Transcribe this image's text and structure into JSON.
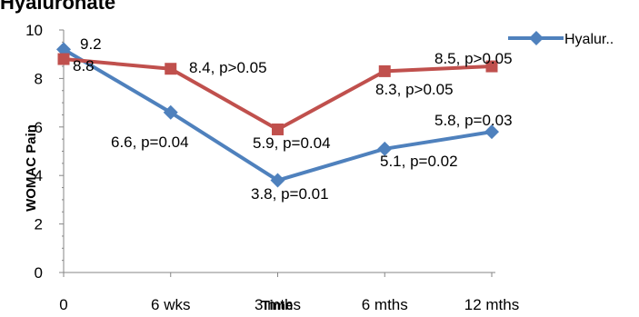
{
  "chart_data": {
    "type": "line",
    "title": "Hyaluronate",
    "xlabel": "Time",
    "ylabel": "WOMAC Pain",
    "categories": [
      "0",
      "6 wks",
      "3 mths",
      "6 mths",
      "12 mths"
    ],
    "ylim": [
      0,
      10
    ],
    "yticks": [
      "0",
      "2",
      "4",
      "6",
      "8",
      "10"
    ],
    "grid": false,
    "legend_position": "top-right",
    "series": [
      {
        "name": "Hyalur..",
        "color": "#4f81bd",
        "marker": "diamond",
        "values": [
          9.2,
          6.6,
          3.8,
          5.1,
          5.8
        ],
        "labels": [
          "9.2",
          "6.6, p=0.04",
          "3.8, p=0.01",
          "5.1, p=0.02",
          "5.8, p=0.03"
        ]
      },
      {
        "color": "#c0504d",
        "marker": "square",
        "values": [
          8.8,
          8.4,
          5.9,
          8.3,
          8.5
        ],
        "labels": [
          "8.8",
          "8.4, p>0.05",
          "5.9, p=0.04",
          "8.3, p>0.05",
          "8.5, p>0.05"
        ]
      }
    ]
  }
}
